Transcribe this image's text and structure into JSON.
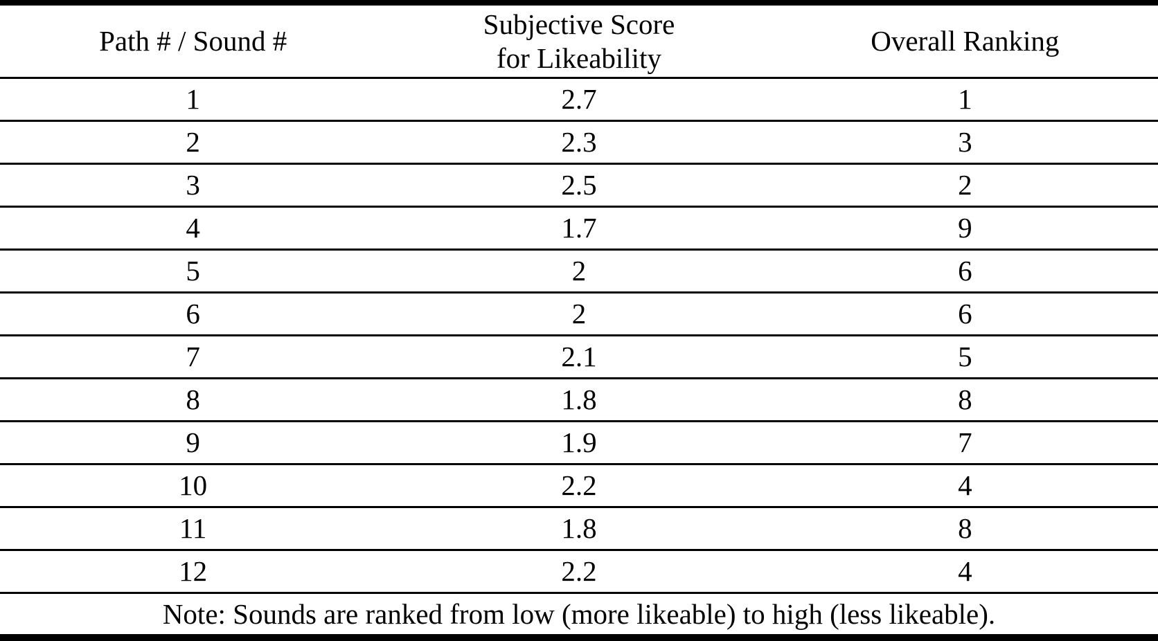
{
  "table": {
    "columns": {
      "col1": {
        "label": "Path # / Sound #"
      },
      "col2": {
        "label_line1": "Subjective Score",
        "label_line2": "for Likeability"
      },
      "col3": {
        "label": "Overall Ranking"
      }
    },
    "rows": [
      {
        "path": "1",
        "score": "2.7",
        "rank": "1"
      },
      {
        "path": "2",
        "score": "2.3",
        "rank": "3"
      },
      {
        "path": "3",
        "score": "2.5",
        "rank": "2"
      },
      {
        "path": "4",
        "score": "1.7",
        "rank": "9"
      },
      {
        "path": "5",
        "score": "2",
        "rank": "6"
      },
      {
        "path": "6",
        "score": "2",
        "rank": "6"
      },
      {
        "path": "7",
        "score": "2.1",
        "rank": "5"
      },
      {
        "path": "8",
        "score": "1.8",
        "rank": "8"
      },
      {
        "path": "9",
        "score": "1.9",
        "rank": "7"
      },
      {
        "path": "10",
        "score": "2.2",
        "rank": "4"
      },
      {
        "path": "11",
        "score": "1.8",
        "rank": "8"
      },
      {
        "path": "12",
        "score": "2.2",
        "rank": "4"
      }
    ],
    "note": "Note: Sounds are ranked from low (more likeable) to high (less likeable)."
  },
  "colors": {
    "background": "#ffffff",
    "text": "#000000",
    "rule": "#000000"
  },
  "chart_data": {
    "type": "table",
    "title": "",
    "columns": [
      "Path # / Sound #",
      "Subjective Score for Likeability",
      "Overall Ranking"
    ],
    "rows": [
      [
        1,
        2.7,
        1
      ],
      [
        2,
        2.3,
        3
      ],
      [
        3,
        2.5,
        2
      ],
      [
        4,
        1.7,
        9
      ],
      [
        5,
        2,
        6
      ],
      [
        6,
        2,
        6
      ],
      [
        7,
        2.1,
        5
      ],
      [
        8,
        1.8,
        8
      ],
      [
        9,
        1.9,
        7
      ],
      [
        10,
        2.2,
        4
      ],
      [
        11,
        1.8,
        8
      ],
      [
        12,
        2.2,
        4
      ]
    ],
    "note": "Note: Sounds are ranked from low (more likeable) to high (less likeable)."
  }
}
